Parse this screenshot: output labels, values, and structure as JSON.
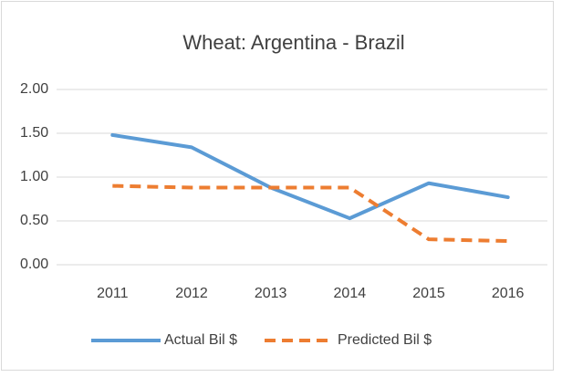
{
  "chart_data": {
    "type": "line",
    "title": "Wheat: Argentina - Brazil",
    "categories": [
      "2011",
      "2012",
      "2013",
      "2014",
      "2015",
      "2016"
    ],
    "series": [
      {
        "name": "Actual Bil $",
        "color": "#5b9bd5",
        "dash": false,
        "values": [
          1.48,
          1.34,
          0.88,
          0.53,
          0.93,
          0.77
        ]
      },
      {
        "name": "Predicted Bil $",
        "color": "#ed7d31",
        "dash": true,
        "values": [
          0.9,
          0.88,
          0.88,
          0.88,
          0.29,
          0.27
        ]
      }
    ],
    "ylim": [
      0,
      2
    ],
    "yticks": [
      {
        "value": 0,
        "label": "0.00"
      },
      {
        "value": 0.5,
        "label": "0.50"
      },
      {
        "value": 1,
        "label": "1.00"
      },
      {
        "value": 1.5,
        "label": "1.50"
      },
      {
        "value": 2,
        "label": "2.00"
      }
    ],
    "grid": true,
    "legend": "bottom"
  }
}
